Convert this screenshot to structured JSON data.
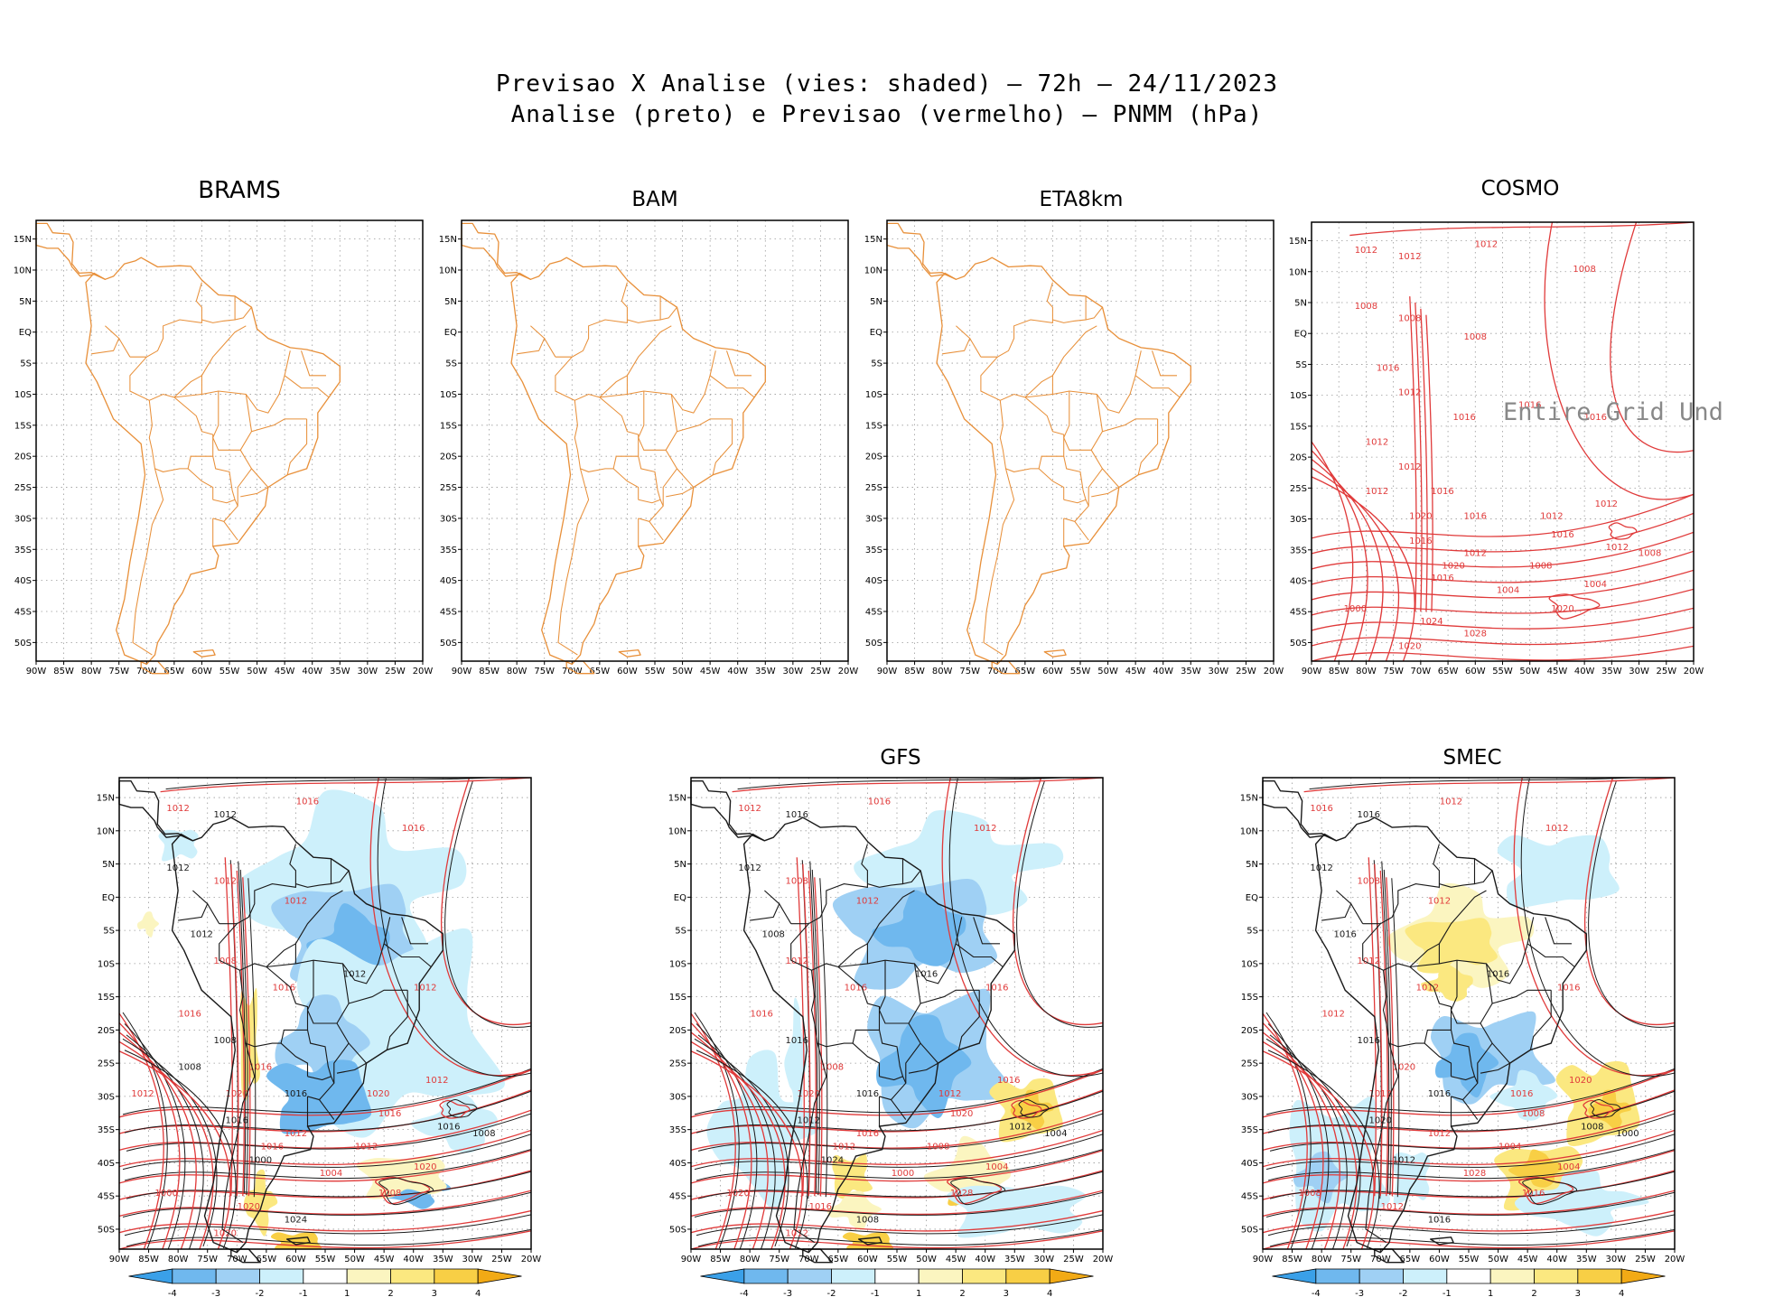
{
  "header": {
    "line1": "Previsao X Analise (vies: shaded) — 72h — 24/11/2023",
    "line2": "Analise (preto) e Previsao (vermelho) — PNMM (hPa)"
  },
  "axes": {
    "lat_labels": [
      "15N",
      "10N",
      "5N",
      "EQ",
      "5S",
      "10S",
      "15S",
      "20S",
      "25S",
      "30S",
      "35S",
      "40S",
      "45S",
      "50S"
    ],
    "lon_labels": [
      "90W",
      "85W",
      "80W",
      "75W",
      "70W",
      "65W",
      "60W",
      "55W",
      "50W",
      "45W",
      "40W",
      "35W",
      "30W",
      "25W",
      "20W"
    ]
  },
  "colors": {
    "coast": "#e8903a",
    "forecast": "#e03a3a",
    "analysis": "#1a1a1a",
    "neg4": "#3aa0e8",
    "neg3": "#6fb8ee",
    "neg2": "#9fd0f4",
    "neg1": "#cdf0fb",
    "pos1": "#fbf5c0",
    "pos2": "#fbe880",
    "pos3": "#f8cf45",
    "pos4": "#f2aa15"
  },
  "panels": [
    {
      "id": "brams",
      "title": "BRAMS",
      "shaded": false,
      "contours": false
    },
    {
      "id": "bam",
      "title": "BAM",
      "shaded": false,
      "contours": false
    },
    {
      "id": "eta",
      "title": "ETA8km",
      "shaded": false,
      "contours": false
    },
    {
      "id": "cosmo",
      "title": "COSMO",
      "shaded": false,
      "contours": true,
      "overlay_text": "Entire Grid Und",
      "labels": [
        "1012",
        "1012",
        "1012",
        "1008",
        "1008",
        "1008",
        "1008",
        "1016",
        "1012",
        "1016",
        "1016",
        "1016",
        "1012",
        "1012",
        "1016",
        "1020",
        "1016",
        "1012",
        "1012",
        "1016",
        "1012",
        "1016",
        "1012",
        "1008",
        "1004",
        "1008",
        "1004",
        "1020",
        "1016",
        "1000",
        "1024",
        "1028",
        "1020",
        "1020",
        "1012"
      ]
    },
    {
      "id": "unnamed",
      "title": "",
      "shaded": true,
      "contours": true,
      "labels": [
        "1012",
        "1012",
        "1016",
        "1016",
        "1012",
        "1012",
        "1012",
        "1012",
        "1008",
        "1016",
        "1012",
        "1012",
        "1016",
        "1008",
        "1016",
        "1020",
        "1016",
        "1020",
        "1012",
        "1016",
        "1012",
        "1016",
        "1016",
        "1012",
        "1020",
        "1008",
        "1004",
        "1008",
        "1000",
        "1000",
        "1020",
        "1024",
        "1020",
        "1016",
        "1008",
        "1012"
      ]
    },
    {
      "id": "gfs",
      "title": "GFS",
      "shaded": true,
      "contours": true,
      "labels": [
        "1012",
        "1016",
        "1016",
        "1012",
        "1012",
        "1008",
        "1012",
        "1008",
        "1012",
        "1016",
        "1016",
        "1016",
        "1016",
        "1016",
        "1008",
        "1020",
        "1016",
        "1012",
        "1016",
        "1012",
        "1016",
        "1020",
        "1012",
        "1008",
        "1004",
        "1004",
        "1000",
        "1028",
        "1024",
        "1020",
        "1016",
        "1008",
        "1012",
        "1012"
      ]
    },
    {
      "id": "smec",
      "title": "SMEC",
      "shaded": true,
      "contours": true,
      "labels": [
        "1016",
        "1016",
        "1012",
        "1012",
        "1012",
        "1008",
        "1012",
        "1016",
        "1012",
        "1012",
        "1016",
        "1016",
        "1012",
        "1016",
        "1020",
        "1012",
        "1016",
        "1016",
        "1020",
        "1020",
        "1012",
        "1008",
        "1008",
        "1004",
        "1004",
        "1000",
        "1028",
        "1016",
        "1012",
        "1008",
        "1012",
        "1016"
      ]
    }
  ],
  "colorbar": {
    "labels": [
      "-4",
      "-3",
      "-2",
      "-1",
      "1",
      "2",
      "3",
      "4"
    ]
  }
}
